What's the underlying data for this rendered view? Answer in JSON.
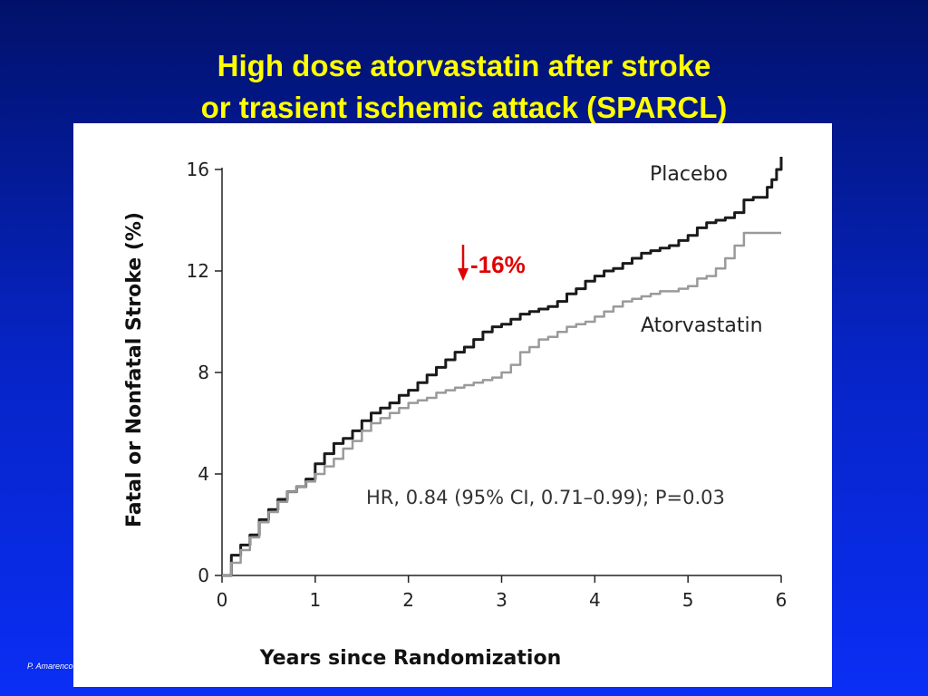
{
  "slide": {
    "title_line1": "High dose atorvastatin after stroke",
    "title_line2": "or trasient ischemic attack (SPARCL)",
    "watermark": "SPARCL",
    "citation": "P. Amarenco"
  },
  "colors": {
    "title": "#ffff00",
    "placebo": "#1a1a1a",
    "atorvastatin": "#9a9a9a",
    "reduction": "#e00000"
  },
  "annotations": {
    "reduction": "-16%",
    "hr_text": "HR, 0.84 (95% CI, 0.71–0.99); P=0.03"
  },
  "chart_data": {
    "type": "line",
    "title": "",
    "xlabel": "Years since Randomization",
    "ylabel": "Fatal or Nonfatal Stroke (%)",
    "xlim": [
      0,
      6
    ],
    "ylim": [
      0,
      16
    ],
    "xticks": [
      0,
      1,
      2,
      3,
      4,
      5,
      6
    ],
    "yticks": [
      0,
      4,
      8,
      12,
      16
    ],
    "grid": false,
    "legend": "inline labels",
    "series": [
      {
        "name": "Placebo",
        "x": [
          0,
          0.1,
          0.2,
          0.3,
          0.4,
          0.5,
          0.6,
          0.7,
          0.8,
          0.9,
          1.0,
          1.1,
          1.2,
          1.3,
          1.4,
          1.5,
          1.6,
          1.7,
          1.8,
          1.9,
          2.0,
          2.1,
          2.2,
          2.3,
          2.4,
          2.5,
          2.6,
          2.7,
          2.8,
          2.9,
          3.0,
          3.1,
          3.2,
          3.3,
          3.4,
          3.5,
          3.6,
          3.7,
          3.8,
          3.9,
          4.0,
          4.1,
          4.2,
          4.3,
          4.4,
          4.5,
          4.6,
          4.7,
          4.8,
          4.9,
          5.0,
          5.1,
          5.2,
          5.3,
          5.4,
          5.5,
          5.6,
          5.7,
          5.8,
          5.85,
          5.9,
          5.95,
          6.0
        ],
        "y": [
          0,
          0.8,
          1.2,
          1.6,
          2.2,
          2.6,
          3.0,
          3.3,
          3.5,
          3.8,
          4.4,
          4.8,
          5.2,
          5.4,
          5.7,
          6.1,
          6.4,
          6.6,
          6.8,
          7.1,
          7.3,
          7.6,
          7.9,
          8.2,
          8.5,
          8.8,
          9.0,
          9.3,
          9.6,
          9.8,
          9.9,
          10.1,
          10.3,
          10.4,
          10.5,
          10.6,
          10.8,
          11.1,
          11.3,
          11.6,
          11.8,
          12.0,
          12.1,
          12.3,
          12.5,
          12.7,
          12.8,
          12.9,
          13.0,
          13.2,
          13.4,
          13.7,
          13.9,
          14.0,
          14.1,
          14.3,
          14.8,
          14.9,
          14.9,
          15.3,
          15.6,
          16.0,
          16.5
        ]
      },
      {
        "name": "Atorvastatin",
        "x": [
          0,
          0.1,
          0.2,
          0.3,
          0.4,
          0.5,
          0.6,
          0.7,
          0.8,
          0.9,
          1.0,
          1.1,
          1.2,
          1.3,
          1.4,
          1.5,
          1.6,
          1.7,
          1.8,
          1.9,
          2.0,
          2.1,
          2.2,
          2.3,
          2.4,
          2.5,
          2.6,
          2.7,
          2.8,
          2.9,
          3.0,
          3.1,
          3.2,
          3.3,
          3.4,
          3.5,
          3.6,
          3.7,
          3.8,
          3.9,
          4.0,
          4.1,
          4.2,
          4.3,
          4.4,
          4.5,
          4.6,
          4.7,
          4.8,
          4.9,
          5.0,
          5.1,
          5.2,
          5.3,
          5.4,
          5.5,
          5.6,
          5.7,
          5.8,
          5.9,
          6.0
        ],
        "y": [
          0,
          0.5,
          1.0,
          1.5,
          2.1,
          2.5,
          2.9,
          3.3,
          3.5,
          3.7,
          4.0,
          4.3,
          4.6,
          5.0,
          5.3,
          5.7,
          6.0,
          6.2,
          6.4,
          6.6,
          6.8,
          6.9,
          7.0,
          7.2,
          7.3,
          7.4,
          7.5,
          7.6,
          7.7,
          7.8,
          8.0,
          8.3,
          8.8,
          9.0,
          9.3,
          9.4,
          9.6,
          9.8,
          9.9,
          10.0,
          10.2,
          10.4,
          10.6,
          10.8,
          10.9,
          11.0,
          11.1,
          11.2,
          11.2,
          11.3,
          11.4,
          11.7,
          11.8,
          12.1,
          12.5,
          13.0,
          13.5,
          13.5,
          13.5,
          13.5,
          13.5
        ]
      }
    ]
  }
}
